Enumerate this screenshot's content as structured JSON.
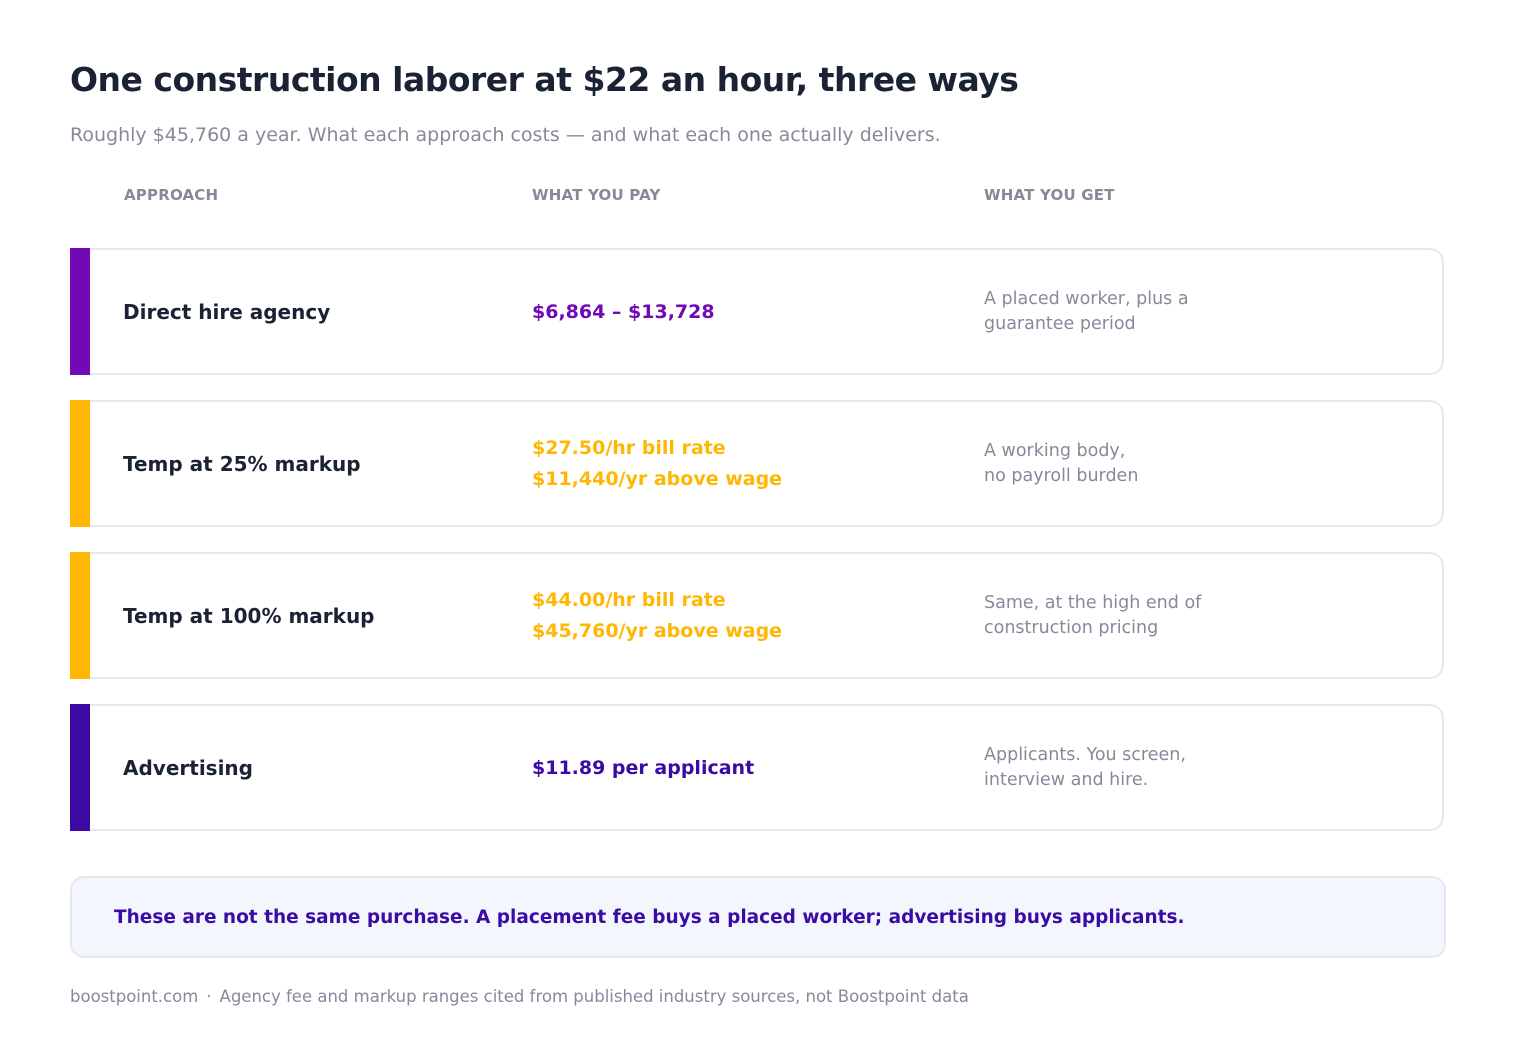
{
  "title": "One construction laborer at $22 an hour, three ways",
  "subtitle": "Roughly $45,760 a year. What each approach costs — and what each one actually delivers.",
  "columns": {
    "approach": "APPROACH",
    "pay": "WHAT YOU PAY",
    "get": "WHAT YOU GET"
  },
  "rows": [
    {
      "approach": "Direct hire agency",
      "pay": [
        "$6,864 – $13,728"
      ],
      "get": [
        "A placed worker, plus a",
        "guarantee period"
      ],
      "color": "#7209b7"
    },
    {
      "approach": "Temp at 25% markup",
      "pay": [
        "$27.50/hr bill rate",
        "$11,440/yr above wage"
      ],
      "get": [
        "A working body,",
        "no payroll burden"
      ],
      "color": "#ffb703"
    },
    {
      "approach": "Temp at 100% markup",
      "pay": [
        "$44.00/hr bill rate",
        "$45,760/yr above wage"
      ],
      "get": [
        "Same, at the high end of",
        "construction pricing"
      ],
      "color": "#ffb703"
    },
    {
      "approach": "Advertising",
      "pay": [
        "$11.89 per applicant"
      ],
      "get": [
        "Applicants. You screen,",
        "interview and hire."
      ],
      "color": "#3a0ca3"
    }
  ],
  "callout": "These are not the same purchase. A placement fee buys a placed worker; advertising buys applicants.",
  "footer": {
    "site": "boostpoint.com",
    "separator": "·",
    "note": "Agency fee and markup ranges cited from published industry sources, not Boostpoint data"
  }
}
